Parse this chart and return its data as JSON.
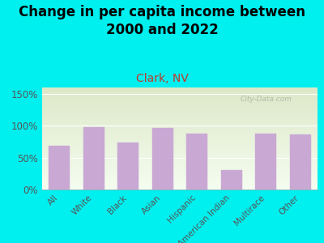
{
  "title": "Change in per capita income between\n2000 and 2022",
  "subtitle": "Clark, NV",
  "categories": [
    "All",
    "White",
    "Black",
    "Asian",
    "Hispanic",
    "American Indian",
    "Multirace",
    "Other"
  ],
  "values": [
    69,
    98,
    74,
    97,
    87,
    30,
    87,
    86
  ],
  "bar_color": "#c9a8d4",
  "background_outer": "#00EFEF",
  "background_inner_top": "#dce8c8",
  "background_inner_bottom": "#f4faf0",
  "title_fontsize": 12,
  "subtitle_fontsize": 10,
  "subtitle_color": "#c0392b",
  "ylabel_ticks": [
    "0%",
    "50%",
    "100%",
    "150%"
  ],
  "ytick_values": [
    0,
    50,
    100,
    150
  ],
  "ylim": [
    0,
    160
  ],
  "watermark": "City-Data.com"
}
